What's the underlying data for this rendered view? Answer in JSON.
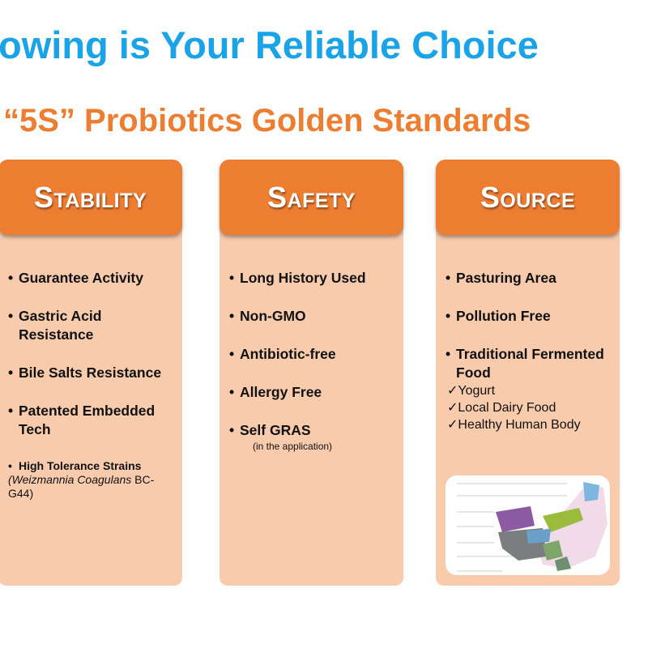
{
  "title": "owing is Your Reliable Choice",
  "subtitle": "“5S” Probiotics Golden Standards",
  "columns": [
    {
      "heading": "Stability",
      "items": [
        "Guarantee Activity",
        "Gastric Acid Resistance",
        "Bile Salts Resistance",
        "Patented Embedded Tech",
        "High Tolerance Strains"
      ],
      "strain_note_italic": "(Weizmannia Coagulans",
      "strain_note_rest": " BC-G44)"
    },
    {
      "heading": "Safety",
      "items": [
        "Long History Used",
        "Non-GMO",
        "Antibiotic-free",
        "Allergy Free",
        "Self GRAS"
      ],
      "gras_note": "(in the application)"
    },
    {
      "heading": "Source",
      "items": [
        "Pasturing Area",
        "Pollution Free",
        "Traditional Fermented Food"
      ],
      "checks": [
        "✓Yogurt",
        "✓Local Dairy Food",
        "✓Healthy Human Body"
      ]
    }
  ],
  "colors": {
    "title": "#1aa3e6",
    "accent": "#ed7d31",
    "panel": "#f8cbad"
  }
}
